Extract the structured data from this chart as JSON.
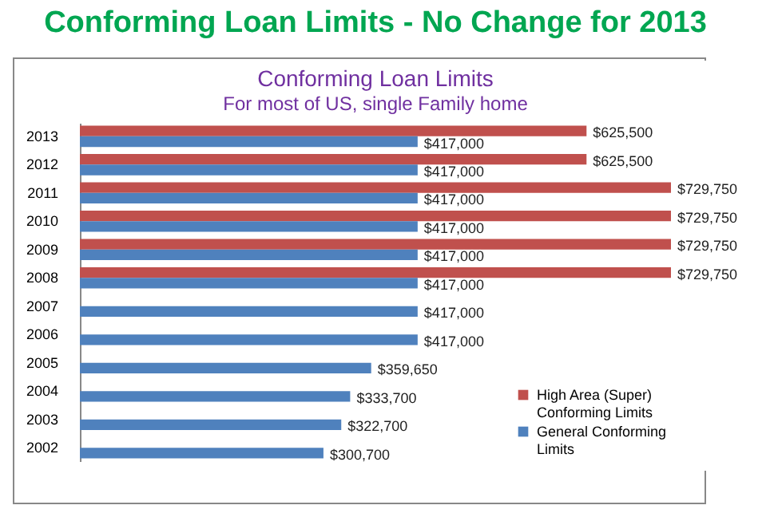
{
  "chart_data": {
    "type": "bar",
    "orientation": "horizontal",
    "title": "Conforming Loan Limits - No Change for 2013",
    "subtitle": "Conforming Loan Limits",
    "annotations": [
      "For most of US, single Family home"
    ],
    "categories": [
      "2013",
      "2012",
      "2011",
      "2010",
      "2009",
      "2008",
      "2007",
      "2006",
      "2005",
      "2004",
      "2003",
      "2002"
    ],
    "series": [
      {
        "name": "High Area (Super) Conforming Limits",
        "color": "#c0504d",
        "values": [
          625500,
          625500,
          729750,
          729750,
          729750,
          729750,
          null,
          null,
          null,
          null,
          null,
          null
        ],
        "value_labels": [
          "$625,500",
          "$625,500",
          "$729,750",
          "$729,750",
          "$729,750",
          "$729,750",
          null,
          null,
          null,
          null,
          null,
          null
        ]
      },
      {
        "name": "General Conforming Limits",
        "color": "#4f81bd",
        "values": [
          417000,
          417000,
          417000,
          417000,
          417000,
          417000,
          417000,
          417000,
          359650,
          333700,
          322700,
          300700
        ],
        "value_labels": [
          "$417,000",
          "$417,000",
          "$417,000",
          "$417,000",
          "$417,000",
          "$417,000",
          "$417,000",
          "$417,000",
          "$359,650",
          "$333,700",
          "$322,700",
          "$300,700"
        ]
      }
    ],
    "legend": "bottom right",
    "grid": false
  }
}
